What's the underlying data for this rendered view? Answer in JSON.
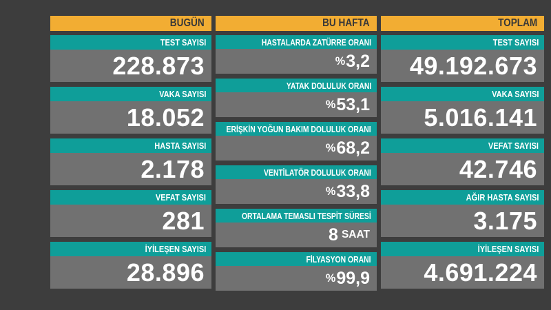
{
  "colors": {
    "background": "#3d3d3d",
    "header_bg": "#f2ad33",
    "header_text": "#383838",
    "label_bg": "#0f9e99",
    "label_text": "#ffffff",
    "value_bg": "#717171",
    "value_text": "#ffffff"
  },
  "columns": [
    {
      "header": "BUGÜN",
      "rows": [
        {
          "label": "TEST SAYISI",
          "prefix": "",
          "number": "228.873",
          "suffix": ""
        },
        {
          "label": "VAKA SAYISI",
          "prefix": "",
          "number": "18.052",
          "suffix": ""
        },
        {
          "label": "HASTA SAYISI",
          "prefix": "",
          "number": "2.178",
          "suffix": ""
        },
        {
          "label": "VEFAT SAYISI",
          "prefix": "",
          "number": "281",
          "suffix": ""
        },
        {
          "label": "İYİLEŞEN SAYISI",
          "prefix": "",
          "number": "28.896",
          "suffix": ""
        }
      ]
    },
    {
      "header": "BU HAFTA",
      "rows": [
        {
          "label": "HASTALARDA ZATÜRRE ORANI",
          "prefix": "%",
          "number": "3,2",
          "suffix": ""
        },
        {
          "label": "YATAK DOLULUK ORANI",
          "prefix": "%",
          "number": "53,1",
          "suffix": ""
        },
        {
          "label": "ERİŞKİN YOĞUN BAKIM DOLULUK ORANI",
          "prefix": "%",
          "number": "68,2",
          "suffix": ""
        },
        {
          "label": "VENTİLATÖR DOLULUK ORANI",
          "prefix": "%",
          "number": "33,8",
          "suffix": ""
        },
        {
          "label": "ORTALAMA TEMASLI TESPİT SÜRESİ",
          "prefix": "",
          "number": "8",
          "suffix": "SAAT"
        },
        {
          "label": "FİLYASYON ORANI",
          "prefix": "%",
          "number": "99,9",
          "suffix": ""
        }
      ]
    },
    {
      "header": "TOPLAM",
      "rows": [
        {
          "label": "TEST SAYISI",
          "prefix": "",
          "number": "49.192.673",
          "suffix": ""
        },
        {
          "label": "VAKA SAYISI",
          "prefix": "",
          "number": "5.016.141",
          "suffix": ""
        },
        {
          "label": "VEFAT SAYISI",
          "prefix": "",
          "number": "42.746",
          "suffix": ""
        },
        {
          "label": "AĞIR HASTA SAYISI",
          "prefix": "",
          "number": "3.175",
          "suffix": ""
        },
        {
          "label": "İYİLEŞEN SAYISI",
          "prefix": "",
          "number": "4.691.224",
          "suffix": ""
        }
      ]
    }
  ],
  "chart_data": {
    "type": "table",
    "groups": [
      {
        "name": "BUGÜN",
        "items": [
          {
            "label": "TEST SAYISI",
            "value": 228873
          },
          {
            "label": "VAKA SAYISI",
            "value": 18052
          },
          {
            "label": "HASTA SAYISI",
            "value": 2178
          },
          {
            "label": "VEFAT SAYISI",
            "value": 281
          },
          {
            "label": "İYİLEŞEN SAYISI",
            "value": 28896
          }
        ]
      },
      {
        "name": "BU HAFTA",
        "items": [
          {
            "label": "HASTALARDA ZATÜRRE ORANI",
            "value": 3.2,
            "unit": "%"
          },
          {
            "label": "YATAK DOLULUK ORANI",
            "value": 53.1,
            "unit": "%"
          },
          {
            "label": "ERİŞKİN YOĞUN BAKIM DOLULUK ORANI",
            "value": 68.2,
            "unit": "%"
          },
          {
            "label": "VENTİLATÖR DOLULUK ORANI",
            "value": 33.8,
            "unit": "%"
          },
          {
            "label": "ORTALAMA TEMASLI TESPİT SÜRESİ",
            "value": 8,
            "unit": "SAAT"
          },
          {
            "label": "FİLYASYON ORANI",
            "value": 99.9,
            "unit": "%"
          }
        ]
      },
      {
        "name": "TOPLAM",
        "items": [
          {
            "label": "TEST SAYISI",
            "value": 49192673
          },
          {
            "label": "VAKA SAYISI",
            "value": 5016141
          },
          {
            "label": "VEFAT SAYISI",
            "value": 42746
          },
          {
            "label": "AĞIR HASTA SAYISI",
            "value": 3175
          },
          {
            "label": "İYİLEŞEN SAYISI",
            "value": 4691224
          }
        ]
      }
    ]
  }
}
